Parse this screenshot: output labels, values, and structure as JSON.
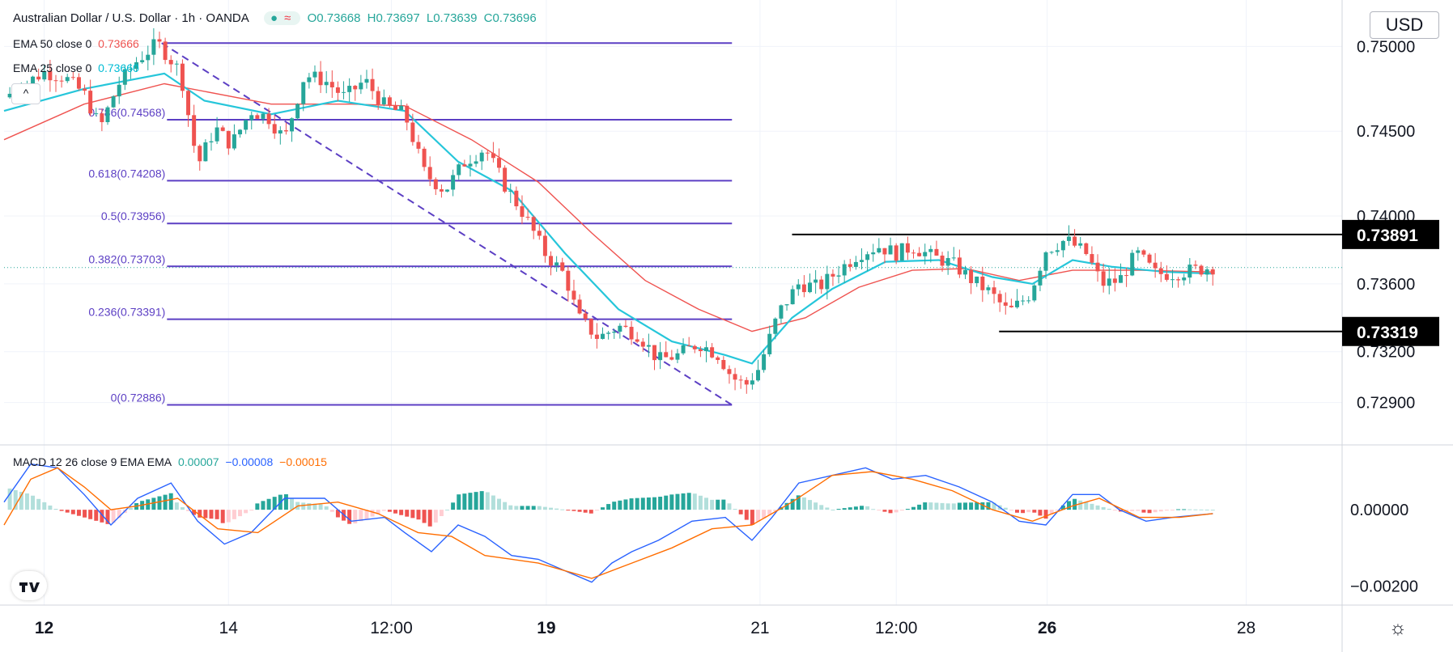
{
  "header": {
    "symbol_title": "Australian Dollar / U.S. Dollar · 1h · OANDA",
    "open": "O0.73668",
    "high": "H0.73697",
    "low": "L0.73639",
    "close": "C0.73696"
  },
  "indicators": {
    "ema50": {
      "label": "EMA 50 close 0",
      "value": "0.73666"
    },
    "ema25": {
      "label": "EMA 25 close 0",
      "value": "0.73660"
    },
    "macd": {
      "label": "MACD 12 26 close 9 EMA EMA",
      "v1": "0.00007",
      "v2": "−0.00008",
      "v3": "−0.00015"
    }
  },
  "controls": {
    "currency": "USD",
    "collapse": "^",
    "settings": "☼"
  },
  "colors": {
    "up": "#26a69a",
    "down": "#ef5350",
    "ema25": "#26c6da",
    "ema50": "#ef5350",
    "fib": "#5c3fc4",
    "macd": "#2962ff",
    "signal": "#ff6d00",
    "hist_up": "#26a69a",
    "hist_down": "#ef5350"
  },
  "chart_data": {
    "type": "candlestick",
    "price_range": [
      0.7265,
      0.7525
    ],
    "price_ticks": [
      "0.75000",
      "0.74500",
      "0.74000",
      "0.73600",
      "0.73200",
      "0.72900"
    ],
    "price_tick_values": [
      0.75,
      0.745,
      0.74,
      0.736,
      0.732,
      0.729
    ],
    "macd_range": [
      -0.0025,
      0.0017
    ],
    "macd_ticks": [
      "0.00000",
      "−0.00200"
    ],
    "macd_tick_values": [
      0,
      -0.002
    ],
    "time_labels": [
      {
        "label": "12",
        "bold": true,
        "t": 0.03
      },
      {
        "label": "14",
        "bold": false,
        "t": 0.168
      },
      {
        "label": "12:00",
        "bold": false,
        "t": 0.29
      },
      {
        "label": "19",
        "bold": true,
        "t": 0.406
      },
      {
        "label": "21",
        "bold": false,
        "t": 0.566
      },
      {
        "label": "12:00",
        "bold": false,
        "t": 0.668
      },
      {
        "label": "26",
        "bold": true,
        "t": 0.781
      },
      {
        "label": "28",
        "bold": false,
        "t": 0.93
      }
    ],
    "fibonacci": [
      {
        "label": "0.786(0.74568)",
        "level": 0.74568
      },
      {
        "label": "0.618(0.74208)",
        "level": 0.74208
      },
      {
        "label": "0.5(0.73956)",
        "level": 0.73956
      },
      {
        "label": "0.382(0.73703)",
        "level": 0.73703
      },
      {
        "label": "0.236(0.73391)",
        "level": 0.73391
      },
      {
        "label": "0(0.72886)",
        "level": 0.72886
      }
    ],
    "fib_top_level": 0.7502,
    "resistance": {
      "label": "0.73891",
      "level": 0.73891
    },
    "support": {
      "label": "0.73319",
      "level": 0.73319
    },
    "current_price": 0.73696,
    "price_path": [
      [
        0.0,
        0.747
      ],
      [
        0.03,
        0.7485
      ],
      [
        0.045,
        0.7482
      ],
      [
        0.06,
        0.7472
      ],
      [
        0.072,
        0.7452
      ],
      [
        0.085,
        0.7477
      ],
      [
        0.1,
        0.7492
      ],
      [
        0.115,
        0.7502
      ],
      [
        0.132,
        0.7485
      ],
      [
        0.145,
        0.743
      ],
      [
        0.158,
        0.7452
      ],
      [
        0.17,
        0.7442
      ],
      [
        0.185,
        0.7462
      ],
      [
        0.198,
        0.7458
      ],
      [
        0.21,
        0.7445
      ],
      [
        0.225,
        0.7483
      ],
      [
        0.24,
        0.748
      ],
      [
        0.255,
        0.747
      ],
      [
        0.27,
        0.748
      ],
      [
        0.285,
        0.7465
      ],
      [
        0.3,
        0.746
      ],
      [
        0.315,
        0.7425
      ],
      [
        0.33,
        0.7415
      ],
      [
        0.345,
        0.7432
      ],
      [
        0.36,
        0.744
      ],
      [
        0.375,
        0.7418
      ],
      [
        0.39,
        0.74
      ],
      [
        0.405,
        0.7378
      ],
      [
        0.42,
        0.7365
      ],
      [
        0.43,
        0.734
      ],
      [
        0.445,
        0.7328
      ],
      [
        0.46,
        0.7335
      ],
      [
        0.475,
        0.733
      ],
      [
        0.49,
        0.7315
      ],
      [
        0.505,
        0.7318
      ],
      [
        0.52,
        0.7325
      ],
      [
        0.535,
        0.7318
      ],
      [
        0.545,
        0.7305
      ],
      [
        0.555,
        0.73
      ],
      [
        0.565,
        0.731
      ],
      [
        0.58,
        0.7343
      ],
      [
        0.595,
        0.736
      ],
      [
        0.61,
        0.7358
      ],
      [
        0.625,
        0.7368
      ],
      [
        0.64,
        0.7378
      ],
      [
        0.655,
        0.7382
      ],
      [
        0.668,
        0.7378
      ],
      [
        0.68,
        0.7382
      ],
      [
        0.695,
        0.7376
      ],
      [
        0.71,
        0.7372
      ],
      [
        0.725,
        0.7362
      ],
      [
        0.738,
        0.7355
      ],
      [
        0.752,
        0.7343
      ],
      [
        0.768,
        0.7354
      ],
      [
        0.78,
        0.738
      ],
      [
        0.795,
        0.7386
      ],
      [
        0.81,
        0.7378
      ],
      [
        0.822,
        0.736
      ],
      [
        0.835,
        0.7362
      ],
      [
        0.848,
        0.7378
      ],
      [
        0.862,
        0.7366
      ],
      [
        0.875,
        0.7366
      ],
      [
        0.89,
        0.7368
      ],
      [
        0.905,
        0.737
      ]
    ],
    "ema25_path": [
      [
        0.0,
        0.7462
      ],
      [
        0.06,
        0.7475
      ],
      [
        0.12,
        0.7484
      ],
      [
        0.15,
        0.7468
      ],
      [
        0.2,
        0.746
      ],
      [
        0.25,
        0.7468
      ],
      [
        0.3,
        0.7462
      ],
      [
        0.34,
        0.7432
      ],
      [
        0.38,
        0.7415
      ],
      [
        0.42,
        0.7378
      ],
      [
        0.46,
        0.7345
      ],
      [
        0.5,
        0.7326
      ],
      [
        0.54,
        0.7318
      ],
      [
        0.56,
        0.7313
      ],
      [
        0.59,
        0.734
      ],
      [
        0.62,
        0.7357
      ],
      [
        0.66,
        0.7373
      ],
      [
        0.7,
        0.7374
      ],
      [
        0.74,
        0.7364
      ],
      [
        0.77,
        0.736
      ],
      [
        0.8,
        0.7374
      ],
      [
        0.83,
        0.737
      ],
      [
        0.87,
        0.7367
      ],
      [
        0.905,
        0.7366
      ]
    ],
    "ema50_path": [
      [
        0.0,
        0.7445
      ],
      [
        0.06,
        0.7466
      ],
      [
        0.12,
        0.7478
      ],
      [
        0.2,
        0.7466
      ],
      [
        0.26,
        0.7466
      ],
      [
        0.3,
        0.7465
      ],
      [
        0.35,
        0.7445
      ],
      [
        0.4,
        0.742
      ],
      [
        0.44,
        0.739
      ],
      [
        0.48,
        0.7362
      ],
      [
        0.52,
        0.7345
      ],
      [
        0.56,
        0.7332
      ],
      [
        0.6,
        0.734
      ],
      [
        0.64,
        0.7358
      ],
      [
        0.68,
        0.7368
      ],
      [
        0.72,
        0.7369
      ],
      [
        0.76,
        0.7362
      ],
      [
        0.8,
        0.7368
      ],
      [
        0.85,
        0.7368
      ],
      [
        0.905,
        0.7367
      ]
    ],
    "macd_path": [
      [
        0.0,
        0.0002
      ],
      [
        0.02,
        0.0012
      ],
      [
        0.04,
        0.0011
      ],
      [
        0.06,
        0.0004
      ],
      [
        0.08,
        -0.0004
      ],
      [
        0.1,
        0.0003
      ],
      [
        0.125,
        0.0007
      ],
      [
        0.145,
        -0.0003
      ],
      [
        0.165,
        -0.0009
      ],
      [
        0.185,
        -0.0006
      ],
      [
        0.21,
        0.0003
      ],
      [
        0.24,
        0.0003
      ],
      [
        0.26,
        -0.0003
      ],
      [
        0.285,
        -0.0002
      ],
      [
        0.3,
        -0.0006
      ],
      [
        0.32,
        -0.0011
      ],
      [
        0.34,
        -0.0004
      ],
      [
        0.36,
        -0.0007
      ],
      [
        0.38,
        -0.0012
      ],
      [
        0.4,
        -0.0013
      ],
      [
        0.42,
        -0.0016
      ],
      [
        0.44,
        -0.0019
      ],
      [
        0.455,
        -0.0014
      ],
      [
        0.47,
        -0.0011
      ],
      [
        0.49,
        -0.0008
      ],
      [
        0.515,
        -0.0003
      ],
      [
        0.54,
        -0.0002
      ],
      [
        0.56,
        -0.0008
      ],
      [
        0.575,
        -0.0002
      ],
      [
        0.595,
        0.0007
      ],
      [
        0.62,
        0.0009
      ],
      [
        0.645,
        0.0011
      ],
      [
        0.665,
        0.0008
      ],
      [
        0.69,
        0.0009
      ],
      [
        0.715,
        0.0006
      ],
      [
        0.74,
        0.0002
      ],
      [
        0.76,
        -0.0003
      ],
      [
        0.78,
        -0.0004
      ],
      [
        0.8,
        0.0004
      ],
      [
        0.82,
        0.0004
      ],
      [
        0.835,
        0.0
      ],
      [
        0.855,
        -0.0003
      ],
      [
        0.875,
        -0.0002
      ],
      [
        0.905,
        -0.0001
      ]
    ],
    "signal_path": [
      [
        0.0,
        -0.0004
      ],
      [
        0.02,
        0.0008
      ],
      [
        0.04,
        0.0011
      ],
      [
        0.06,
        0.0006
      ],
      [
        0.08,
        0.0
      ],
      [
        0.1,
        0.0001
      ],
      [
        0.13,
        0.0003
      ],
      [
        0.16,
        -0.0005
      ],
      [
        0.19,
        -0.0006
      ],
      [
        0.22,
        0.0001
      ],
      [
        0.25,
        0.0002
      ],
      [
        0.28,
        -0.0001
      ],
      [
        0.31,
        -0.0006
      ],
      [
        0.335,
        -0.0007
      ],
      [
        0.36,
        -0.0012
      ],
      [
        0.4,
        -0.0014
      ],
      [
        0.44,
        -0.0018
      ],
      [
        0.47,
        -0.0014
      ],
      [
        0.5,
        -0.001
      ],
      [
        0.53,
        -0.0005
      ],
      [
        0.56,
        -0.0004
      ],
      [
        0.59,
        0.0002
      ],
      [
        0.62,
        0.0009
      ],
      [
        0.65,
        0.001
      ],
      [
        0.68,
        0.0008
      ],
      [
        0.71,
        0.0005
      ],
      [
        0.74,
        0.0
      ],
      [
        0.77,
        -0.0003
      ],
      [
        0.8,
        0.0001
      ],
      [
        0.82,
        0.0003
      ],
      [
        0.85,
        -0.0002
      ],
      [
        0.88,
        -0.0002
      ],
      [
        0.905,
        -0.0001
      ]
    ]
  }
}
